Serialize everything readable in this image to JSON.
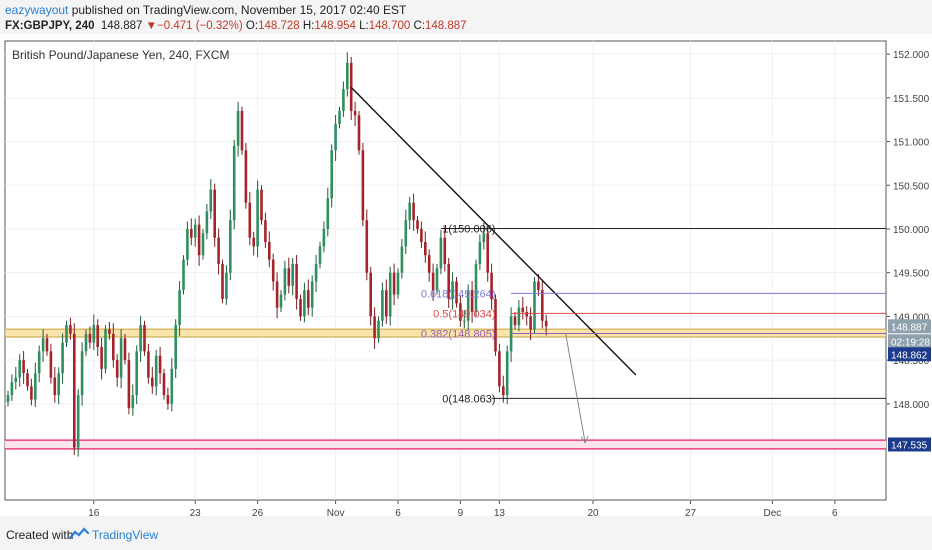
{
  "header": {
    "author": "eazywayout",
    "published_text": " published on TradingView.com, November 15, 2017 02:40 EST",
    "symbol": "FX:GBPJPY, 240",
    "last": "148.887",
    "change_arrow": "▼",
    "change": "−0.471 (−0.32%)",
    "o_label": "O:",
    "o_value": "148.728",
    "h_label": "H:",
    "h_value": "148.954",
    "l_label": "L:",
    "l_value": "148.700",
    "c_label": "C:",
    "c_value": "148.887"
  },
  "footer": {
    "created_with": "Created with",
    "brand": "TradingView"
  },
  "chart_data": {
    "type": "candlestick",
    "title": "British Pound/Japanese Yen, 240, FXCM",
    "ylim": [
      146.9,
      152.15
    ],
    "y_ticks": [
      148.0,
      148.5,
      149.0,
      149.5,
      150.0,
      150.5,
      151.0,
      151.5,
      152.0
    ],
    "y_tick_labels": [
      "148.000",
      "148.500",
      "149.000",
      "149.500",
      "150.000",
      "150.500",
      "151.000",
      "151.500",
      "152.000"
    ],
    "x_ticks": [
      {
        "label": "16",
        "index": 22
      },
      {
        "label": "23",
        "index": 48
      },
      {
        "label": "26",
        "index": 64
      },
      {
        "label": "Nov",
        "index": 84
      },
      {
        "label": "6",
        "index": 100
      },
      {
        "label": "9",
        "index": 116
      },
      {
        "label": "13",
        "index": 126
      },
      {
        "label": "20",
        "index": 150
      },
      {
        "label": "27",
        "index": 175
      },
      {
        "label": "Dec",
        "index": 196
      },
      {
        "label": "6",
        "index": 212
      }
    ],
    "closes": [
      148.1,
      148.25,
      148.3,
      148.5,
      148.35,
      148.2,
      148.05,
      148.35,
      148.6,
      148.75,
      148.6,
      148.3,
      148.1,
      148.35,
      148.7,
      148.9,
      148.8,
      147.5,
      148.1,
      148.6,
      148.8,
      148.7,
      148.9,
      148.65,
      148.4,
      148.85,
      148.8,
      148.5,
      148.3,
      148.75,
      148.5,
      147.95,
      148.1,
      148.6,
      148.9,
      148.6,
      148.3,
      148.2,
      148.55,
      148.35,
      148.1,
      148.0,
      148.4,
      148.9,
      149.3,
      149.65,
      150.0,
      149.9,
      150.05,
      149.7,
      149.95,
      150.2,
      150.45,
      149.9,
      149.6,
      149.2,
      149.5,
      150.1,
      150.95,
      151.35,
      150.9,
      150.3,
      149.9,
      149.8,
      150.45,
      150.1,
      149.85,
      149.65,
      149.4,
      149.1,
      149.25,
      149.55,
      149.35,
      149.6,
      149.2,
      149.0,
      149.3,
      149.1,
      149.4,
      149.6,
      149.8,
      150.0,
      150.35,
      150.9,
      151.2,
      151.35,
      151.6,
      151.9,
      151.35,
      151.3,
      150.9,
      150.1,
      149.5,
      149.0,
      148.75,
      148.95,
      149.3,
      149.0,
      149.5,
      149.25,
      149.5,
      149.8,
      150.1,
      150.3,
      150.1,
      150.0,
      149.85,
      149.7,
      149.5,
      149.3,
      149.55,
      149.9,
      149.6,
      149.2,
      149.4,
      149.15,
      148.95,
      148.95,
      149.3,
      149.05,
      149.6,
      149.85,
      149.95,
      149.5,
      149.2,
      148.6,
      148.2,
      148.1,
      148.6,
      149.0,
      148.9,
      149.1,
      149.05,
      149.0,
      148.85,
      149.4,
      149.3,
      148.95,
      148.887
    ]
  },
  "levels": [
    {
      "label": "1(150.006)",
      "value": 150.006
    },
    {
      "label": "0.618(149.264)",
      "value": 149.264
    },
    {
      "label": "0.5(149.034)",
      "value": 149.034
    },
    {
      "label": "0.382(148.805)",
      "value": 148.805
    },
    {
      "label": "0(148.063)",
      "value": 148.063
    }
  ],
  "price_tags": [
    {
      "label": "148.887",
      "value": 148.887
    },
    {
      "label": "02:19:28"
    },
    {
      "label": "148.862",
      "value": 148.862
    },
    {
      "label": "147.535",
      "value": 147.535
    }
  ],
  "colors": {
    "up": "#26a69a",
    "up_body": "#2f8f60",
    "down": "#e0494b",
    "down_body": "#a5242b",
    "fib_1": "#222222",
    "fib_618": "#7b7bd8",
    "fib_05": "#e0494b",
    "fib_382": "#9b59b6",
    "fib_0": "#222222",
    "support_band": "#f7dc90",
    "target_band": "#e91e63",
    "tag_blue": "#1c3b8c",
    "tag_grey": "#8ea1ad"
  }
}
